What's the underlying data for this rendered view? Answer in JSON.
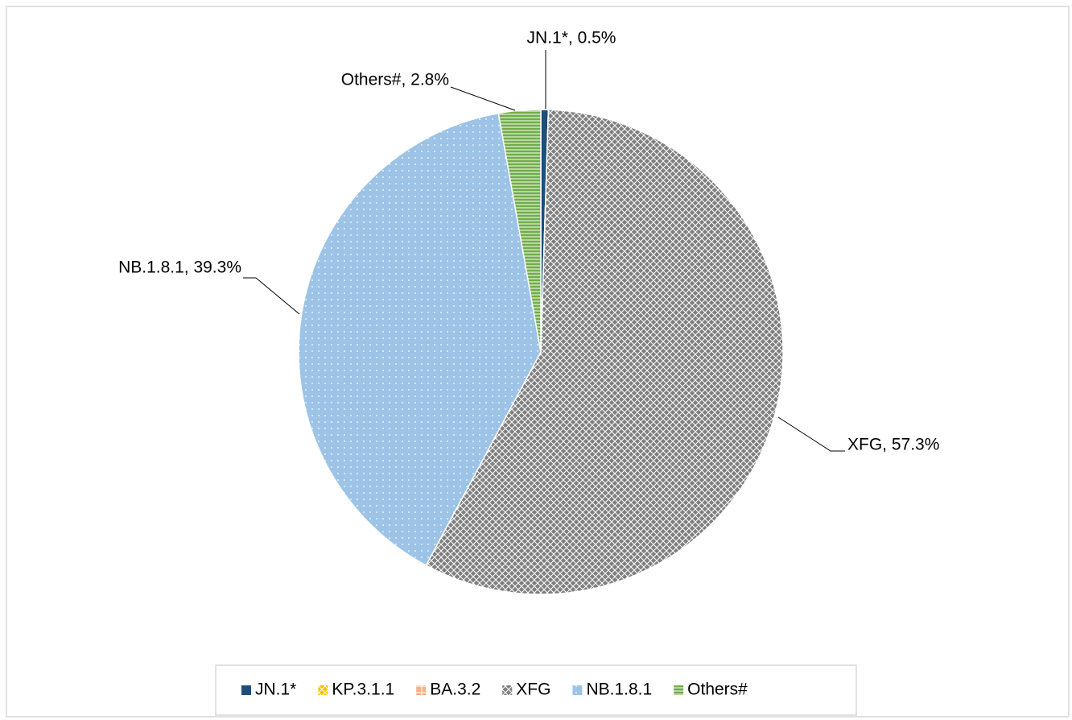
{
  "chart_data": {
    "type": "pie",
    "categories": [
      "JN.1*",
      "KP.3.1.1",
      "BA.3.2",
      "XFG",
      "NB.1.8.1",
      "Others#"
    ],
    "values": [
      0.5,
      0,
      0,
      57.3,
      39.3,
      2.8
    ],
    "value_labels": [
      "JN.1*, 0.5%",
      null,
      null,
      "XFG, 57.3%",
      "NB.1.8.1, 39.3%",
      "Others#, 2.8%"
    ],
    "colors": [
      "#1f4e79",
      "#ffc000",
      "#f4b183",
      "#7f7f7f",
      "#9dc3e6",
      "#70ad47"
    ],
    "legend": "bottom"
  }
}
